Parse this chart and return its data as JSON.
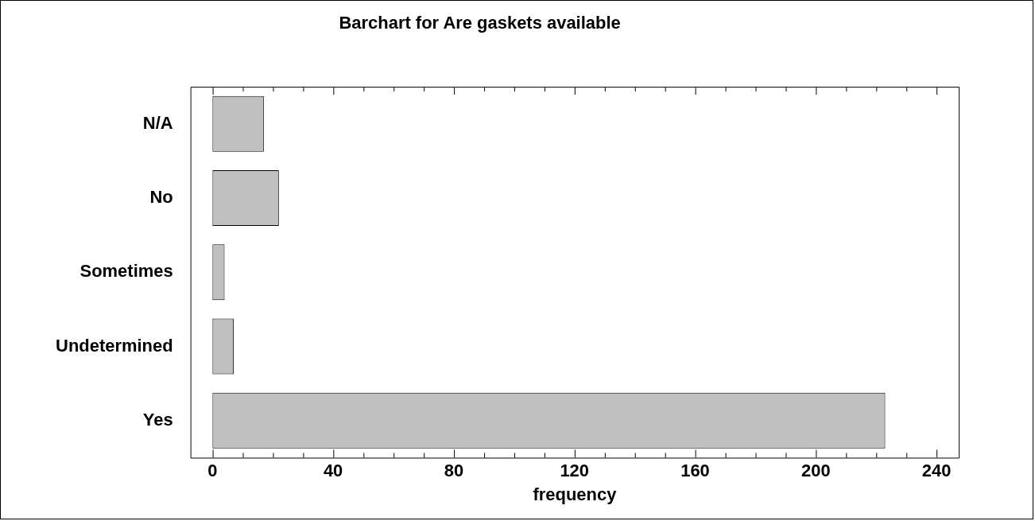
{
  "chart_data": {
    "type": "bar",
    "orientation": "horizontal",
    "title": "Barchart for Are gaskets available",
    "xlabel": "frequency",
    "categories": [
      "N/A",
      "No",
      "Sometimes",
      "Undetermined",
      "Yes"
    ],
    "values": [
      17,
      22,
      4,
      7,
      223
    ],
    "color": "#c0c0c0",
    "xlim": [
      -7.3,
      247.4
    ],
    "xticks": [
      0,
      {
        "value": 10,
        "label": null
      },
      {
        "value": 20,
        "label": null
      },
      {
        "value": 30,
        "label": null
      },
      40,
      {
        "value": 50,
        "label": null
      },
      {
        "value": 60,
        "label": null
      },
      {
        "value": 70,
        "label": null
      },
      80,
      {
        "value": 90,
        "label": null
      },
      {
        "value": 100,
        "label": null
      },
      {
        "value": 110,
        "label": null
      },
      120,
      {
        "value": 130,
        "label": null
      },
      {
        "value": 140,
        "label": null
      },
      {
        "value": 150,
        "label": null
      },
      160,
      {
        "value": 170,
        "label": null
      },
      {
        "value": 180,
        "label": null
      },
      {
        "value": 190,
        "label": null
      },
      200,
      {
        "value": 210,
        "label": null
      },
      {
        "value": 220,
        "label": null
      },
      {
        "value": 230,
        "label": null
      },
      240
    ],
    "grid": false,
    "legend": false
  }
}
